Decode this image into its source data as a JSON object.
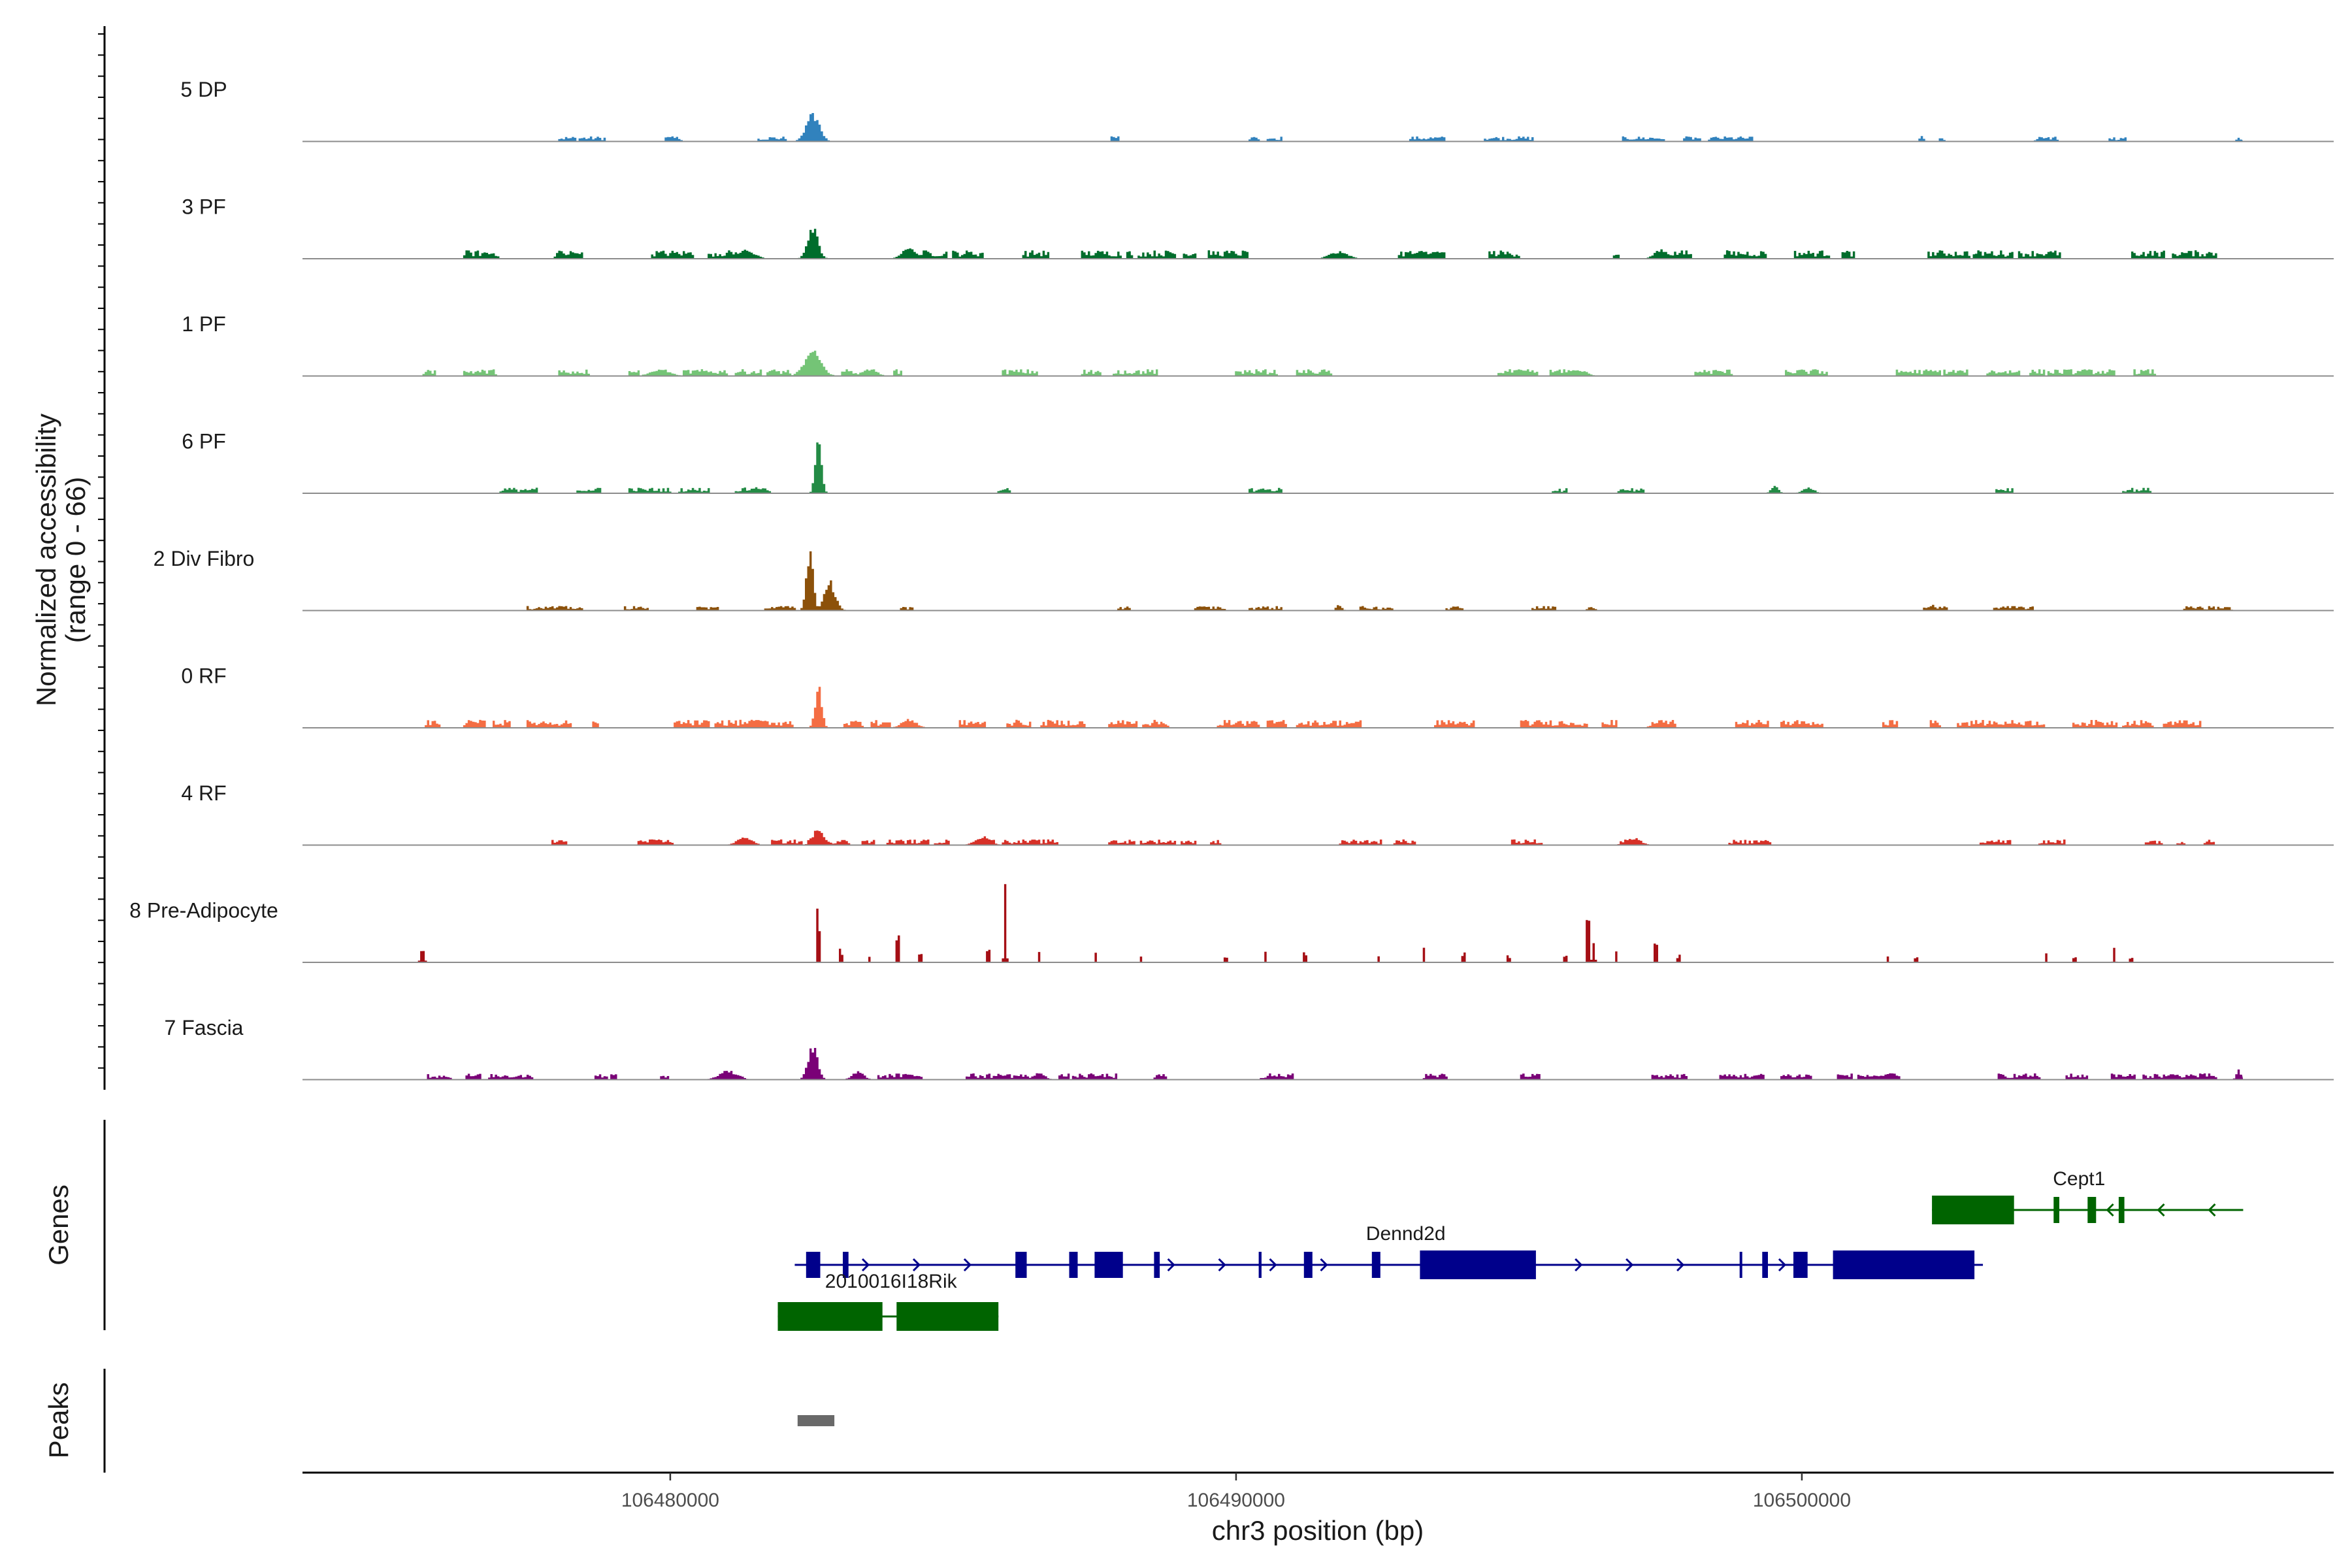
{
  "chart_data": {
    "type": "area",
    "chromosome": "chr3",
    "xlabel": "chr3 position (bp)",
    "ylabel_line1": "Normalized accessibility",
    "ylabel_line2": "(range 0 - 66)",
    "genes_label": "Genes",
    "peaks_label": "Peaks",
    "xlim": [
      106473500,
      106509400
    ],
    "ylim": [
      0,
      66
    ],
    "x_ticks": [
      106480000,
      106490000,
      106500000
    ],
    "x_tick_labels": [
      "106480000",
      "106490000",
      "106500000"
    ],
    "signal_range": [
      106475500,
      106507800
    ],
    "tracks": [
      {
        "name": "5 DP",
        "color": "#3182BD",
        "noise": 0.045,
        "density": 0.18,
        "peaks": [
          [
            106482500,
            20,
            350
          ],
          [
            106490300,
            2,
            200
          ],
          [
            106502100,
            4,
            120
          ],
          [
            106504200,
            3,
            200
          ],
          [
            106507700,
            3,
            100
          ]
        ]
      },
      {
        "name": "3 PF",
        "color": "#006D2C",
        "noise": 0.075,
        "density": 0.4,
        "peaks": [
          [
            106482500,
            24,
            280
          ],
          [
            106481300,
            6,
            500
          ],
          [
            106484200,
            7,
            400
          ],
          [
            106491800,
            5,
            500
          ],
          [
            106497500,
            6,
            400
          ]
        ]
      },
      {
        "name": "1 PF",
        "color": "#74C476",
        "noise": 0.06,
        "density": 0.45,
        "peaks": [
          [
            106482500,
            17,
            450
          ],
          [
            106479800,
            5,
            500
          ],
          [
            106483500,
            5,
            400
          ],
          [
            106496000,
            4,
            500
          ]
        ]
      },
      {
        "name": "6 PF",
        "color": "#238B45",
        "noise": 0.05,
        "density": 0.22,
        "peaks": [
          [
            106482600,
            44,
            160
          ],
          [
            106481500,
            4,
            400
          ],
          [
            106499500,
            5,
            200
          ],
          [
            106500100,
            4,
            300
          ]
        ]
      },
      {
        "name": "2 Div Fibro",
        "color": "#8C510A",
        "noise": 0.04,
        "density": 0.2,
        "peaks": [
          [
            106482450,
            46,
            180
          ],
          [
            106482800,
            20,
            300
          ],
          [
            106491800,
            4,
            150
          ],
          [
            106502300,
            4,
            150
          ],
          [
            106507500,
            3,
            150
          ]
        ]
      },
      {
        "name": "0 RF",
        "color": "#F46D43",
        "noise": 0.07,
        "density": 0.5,
        "peaks": [
          [
            106482600,
            28,
            180
          ],
          [
            106481500,
            6,
            500
          ],
          [
            106484200,
            6,
            400
          ],
          [
            106497500,
            5,
            400
          ]
        ]
      },
      {
        "name": "4 RF",
        "color": "#D73027",
        "noise": 0.05,
        "density": 0.38,
        "peaks": [
          [
            106482600,
            12,
            300
          ],
          [
            106481300,
            6,
            400
          ],
          [
            106485500,
            6,
            400
          ],
          [
            106497000,
            5,
            400
          ]
        ]
      },
      {
        "name": "8 Pre-Adipocyte",
        "color": "#A50F15",
        "noise": 0.0,
        "density": 0.0,
        "peaks": [
          [
            106475600,
            9,
            130
          ],
          [
            106482600,
            60,
            70
          ],
          [
            106483000,
            14,
            80
          ],
          [
            106483500,
            7,
            70
          ],
          [
            106484000,
            30,
            90
          ],
          [
            106484400,
            12,
            70
          ],
          [
            106485900,
            64,
            70
          ],
          [
            106485600,
            14,
            70
          ],
          [
            106486500,
            8,
            60
          ],
          [
            106487500,
            7,
            60
          ],
          [
            106488300,
            7,
            60
          ],
          [
            106489800,
            6,
            60
          ],
          [
            106490500,
            9,
            60
          ],
          [
            106491200,
            14,
            60
          ],
          [
            106492500,
            8,
            60
          ],
          [
            106493300,
            12,
            60
          ],
          [
            106494000,
            14,
            60
          ],
          [
            106494800,
            10,
            60
          ],
          [
            106495800,
            9,
            60
          ],
          [
            106496300,
            20,
            80
          ],
          [
            106496200,
            52,
            60
          ],
          [
            106496700,
            14,
            60
          ],
          [
            106497400,
            24,
            70
          ],
          [
            106497800,
            10,
            60
          ],
          [
            106501500,
            6,
            60
          ],
          [
            106502000,
            8,
            60
          ],
          [
            106504300,
            7,
            60
          ],
          [
            106504800,
            6,
            60
          ],
          [
            106505500,
            12,
            70
          ],
          [
            106505800,
            6,
            60
          ]
        ]
      },
      {
        "name": "7 Fascia",
        "color": "#7A0177",
        "noise": 0.055,
        "density": 0.38,
        "peaks": [
          [
            106482500,
            24,
            260
          ],
          [
            106481000,
            6,
            500
          ],
          [
            106483300,
            6,
            300
          ],
          [
            106486500,
            5,
            300
          ],
          [
            106507700,
            7,
            120
          ]
        ]
      }
    ],
    "genes": [
      {
        "name": "Dennd2d",
        "color": "#00008B",
        "strand": "+",
        "row": 1,
        "start": 106482200,
        "end": 106503200,
        "label_x": 106493000,
        "exons": [
          [
            106482400,
            106482650
          ],
          [
            106483050,
            106483150
          ],
          [
            106486100,
            106486300
          ],
          [
            106487050,
            106487200
          ],
          [
            106487500,
            106488000
          ],
          [
            106488550,
            106488650
          ],
          [
            106490400,
            106490450
          ],
          [
            106491200,
            106491350
          ],
          [
            106492400,
            106492550
          ],
          [
            106493250,
            106495300
          ],
          [
            106498900,
            106498940
          ],
          [
            106499300,
            106499400
          ],
          [
            106499850,
            106500100
          ],
          [
            106500550,
            106503050
          ]
        ]
      },
      {
        "name": "Cept1",
        "color": "#006400",
        "strand": "-",
        "row": 0,
        "start": 106502300,
        "end": 106507800,
        "label_x": 106504900,
        "exons": [
          [
            106502300,
            106503750
          ],
          [
            106504450,
            106504550
          ],
          [
            106505050,
            106505200
          ],
          [
            106505600,
            106505700
          ]
        ]
      },
      {
        "name": "2010016I18Rik",
        "color": "#006400",
        "strand": "-",
        "row": 2,
        "start": 106481900,
        "end": 106485800,
        "label_x": 106483900,
        "exons": [
          [
            106481900,
            106483750
          ],
          [
            106484000,
            106485800
          ]
        ]
      }
    ],
    "peak_regions": [
      [
        106482250,
        106482900
      ]
    ],
    "peak_color": "#696969"
  }
}
